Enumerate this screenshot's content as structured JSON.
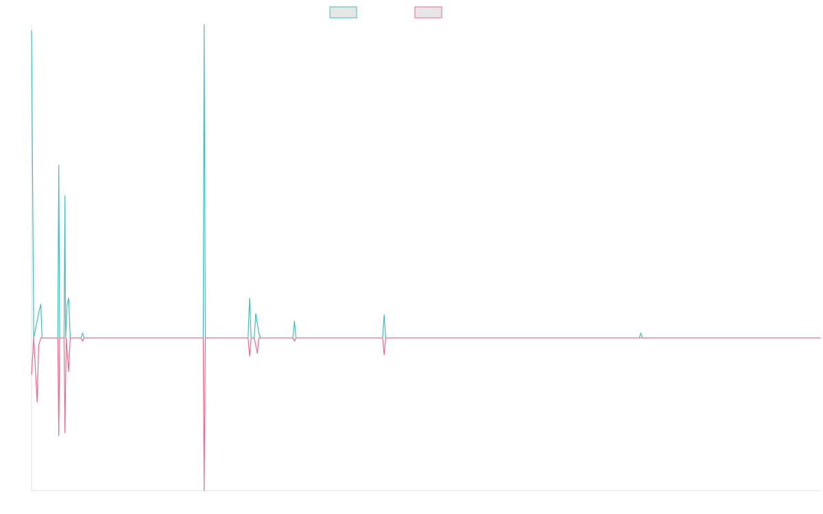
{
  "chart_data": {
    "type": "line",
    "title": "",
    "xlabel": "",
    "ylabel": "",
    "grid": false,
    "legend": {
      "position": "top-center",
      "entries": [
        {
          "label": "",
          "color": "#3bbfbf",
          "fill": "#e6e6e6"
        },
        {
          "label": "",
          "color": "#f0668a",
          "fill": "#e6e6e6"
        }
      ]
    },
    "xlim": [
      0,
      255
    ],
    "ylim": [
      -100,
      205
    ],
    "series": [
      {
        "name": "",
        "color": "#3bbfbf",
        "points": [
          [
            0,
            201
          ],
          [
            0.7,
            0
          ],
          [
            2.5,
            18
          ],
          [
            3,
            22
          ],
          [
            3.4,
            0
          ],
          [
            8.5,
            0
          ],
          [
            8.8,
            113
          ],
          [
            9.1,
            0
          ],
          [
            10.5,
            0
          ],
          [
            10.8,
            93
          ],
          [
            11,
            0
          ],
          [
            11.5,
            22
          ],
          [
            12,
            26
          ],
          [
            12.5,
            0
          ],
          [
            16,
            0
          ],
          [
            16.5,
            3
          ],
          [
            17,
            0
          ],
          [
            55.5,
            0
          ],
          [
            55.8,
            205
          ],
          [
            56.2,
            0
          ],
          [
            70,
            0
          ],
          [
            70.5,
            26
          ],
          [
            71,
            0
          ],
          [
            72,
            0
          ],
          [
            72.5,
            16
          ],
          [
            73.5,
            3
          ],
          [
            74,
            0
          ],
          [
            84.5,
            0
          ],
          [
            85,
            11
          ],
          [
            85.5,
            0
          ],
          [
            113.5,
            0
          ],
          [
            114,
            15
          ],
          [
            114.5,
            0
          ],
          [
            196.5,
            0
          ],
          [
            197,
            3
          ],
          [
            197.5,
            0
          ],
          [
            255,
            0
          ]
        ]
      },
      {
        "name": "",
        "color": "#f0668a",
        "points": [
          [
            0,
            -24
          ],
          [
            0.7,
            0
          ],
          [
            1.8,
            -42
          ],
          [
            2.3,
            -5
          ],
          [
            3,
            0
          ],
          [
            8.5,
            0
          ],
          [
            8.8,
            -64
          ],
          [
            9.1,
            0
          ],
          [
            10.5,
            0
          ],
          [
            10.8,
            -62
          ],
          [
            11.2,
            0
          ],
          [
            12,
            -22
          ],
          [
            12.5,
            0
          ],
          [
            16,
            0
          ],
          [
            16.5,
            -2
          ],
          [
            17,
            0
          ],
          [
            55.5,
            0
          ],
          [
            55.8,
            -100
          ],
          [
            56.2,
            0
          ],
          [
            70,
            0
          ],
          [
            70.5,
            -12
          ],
          [
            71,
            0
          ],
          [
            72,
            0
          ],
          [
            73,
            -10
          ],
          [
            73.5,
            0
          ],
          [
            84.5,
            0
          ],
          [
            85,
            -2
          ],
          [
            85.5,
            0
          ],
          [
            113.5,
            0
          ],
          [
            114,
            -11
          ],
          [
            114.5,
            0
          ],
          [
            255,
            0
          ]
        ]
      }
    ]
  }
}
